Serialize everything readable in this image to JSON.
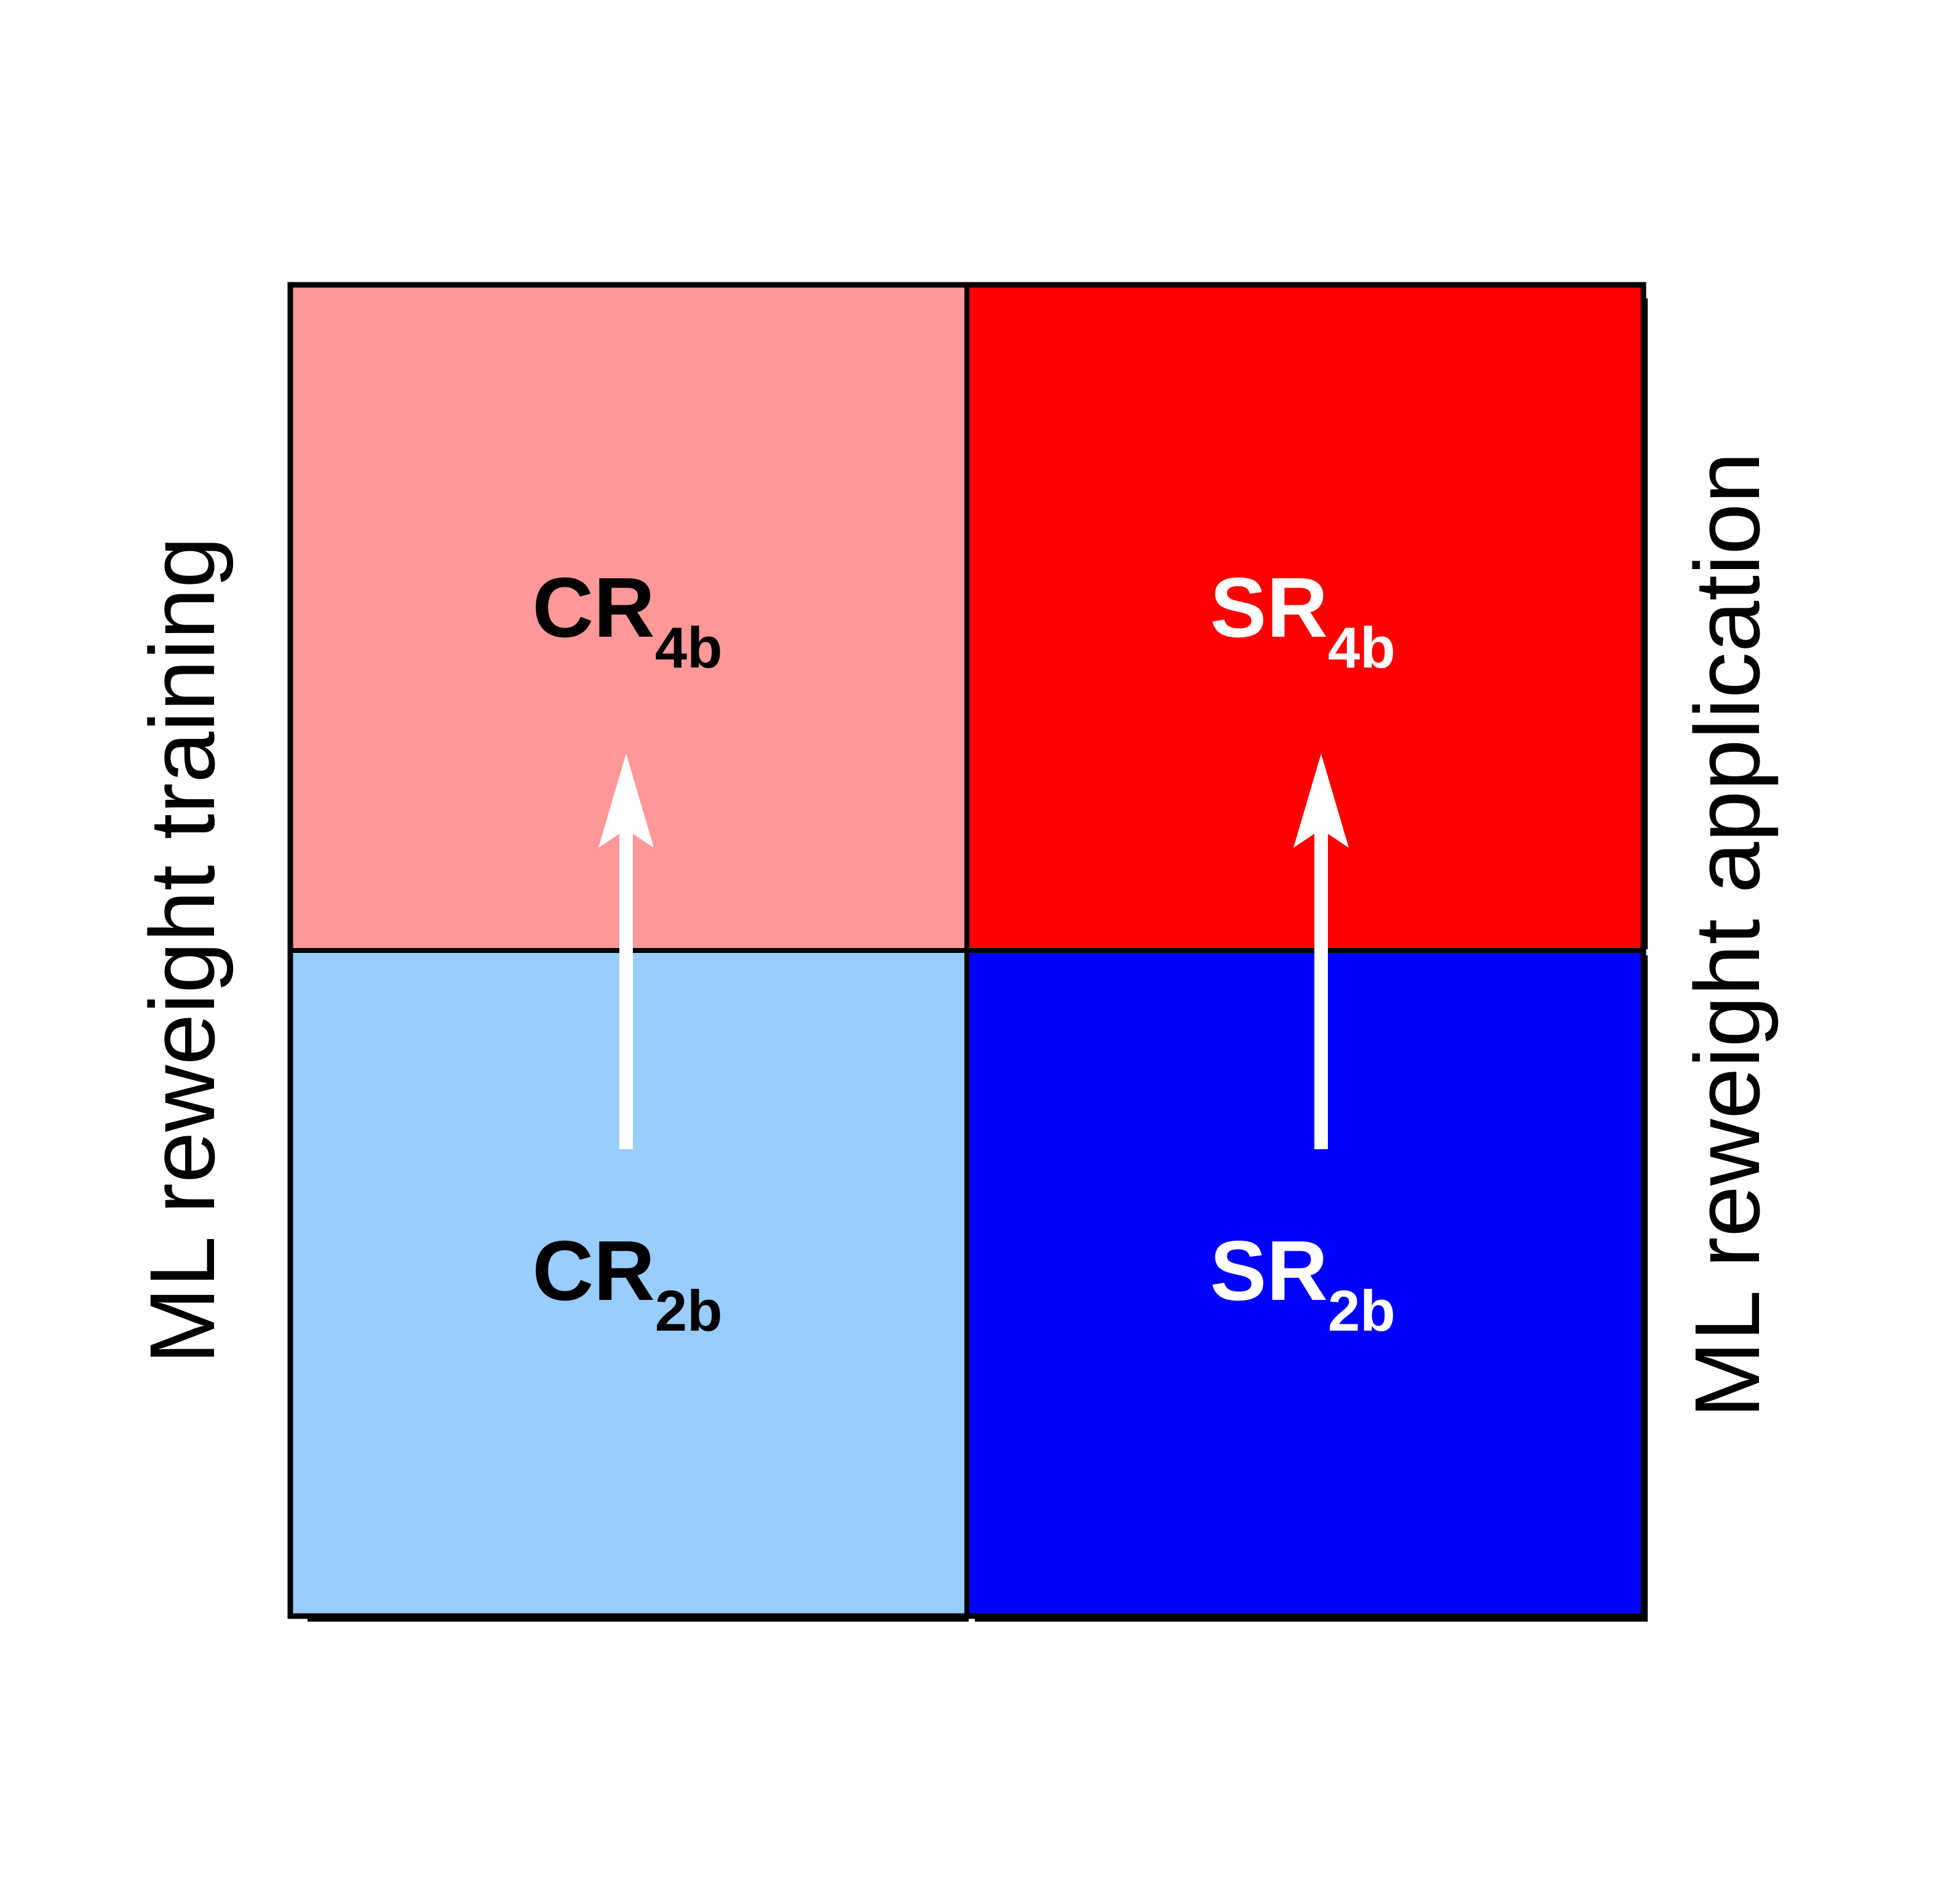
{
  "regions": {
    "cr4b": {
      "main": "CR",
      "sub": "4b",
      "fill": "#ff9999",
      "text_color": "#000000"
    },
    "sr4b": {
      "main": "SR",
      "sub": "4b",
      "fill": "#ff0000",
      "text_color": "#ffffff"
    },
    "cr2b": {
      "main": "CR",
      "sub": "2b",
      "fill": "#99ccff",
      "text_color": "#000000"
    },
    "sr2b": {
      "main": "SR",
      "sub": "2b",
      "fill": "#0000ff",
      "text_color": "#ffffff"
    }
  },
  "left_label": "ML reweight training",
  "right_label": "ML reweight application",
  "colors": {
    "border": "#000000",
    "arrow": "#ffffff"
  }
}
